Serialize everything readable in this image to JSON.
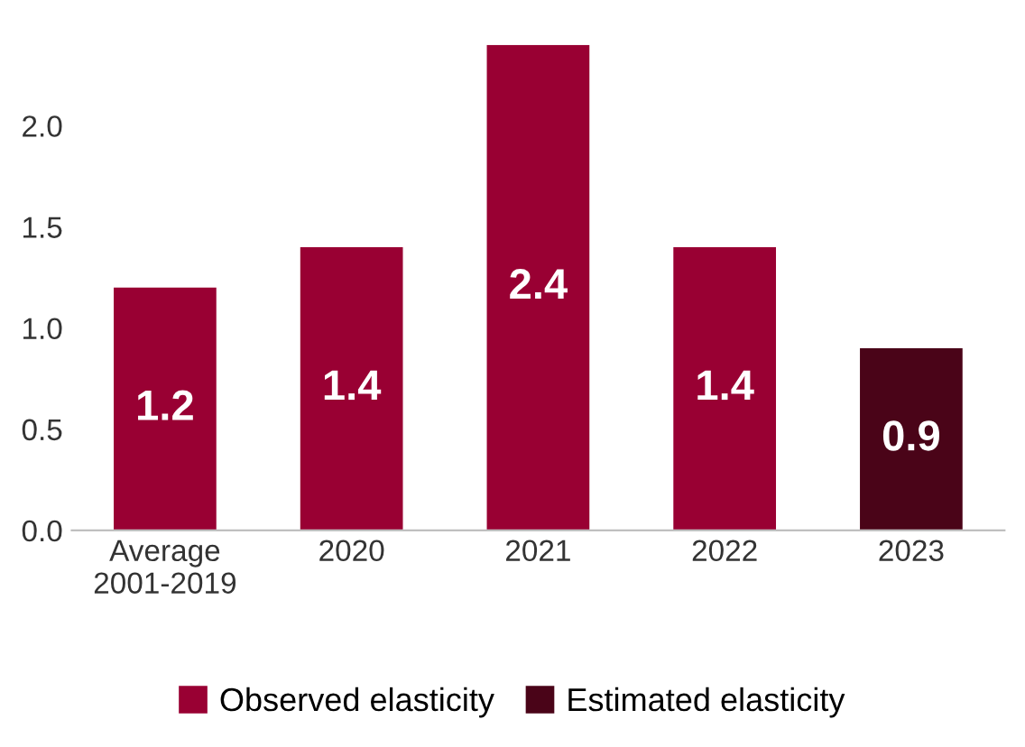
{
  "chart_data": {
    "type": "bar",
    "categories": [
      "Average\n2001-2019",
      "2020",
      "2021",
      "2022",
      "2023"
    ],
    "series": [
      {
        "name": "Observed elasticity",
        "color": "#990033",
        "values": [
          1.2,
          1.4,
          2.4,
          1.4,
          null
        ]
      },
      {
        "name": "Estimated elasticity",
        "color": "#4a0418",
        "values": [
          null,
          null,
          null,
          null,
          0.9
        ]
      }
    ],
    "ylim": [
      0,
      2.4
    ],
    "yticks": [
      {
        "value": 0,
        "label": "0.0"
      },
      {
        "value": 0.5,
        "label": "0.5"
      },
      {
        "value": 1.0,
        "label": "1.0"
      },
      {
        "value": 1.5,
        "label": "1.5"
      },
      {
        "value": 2.0,
        "label": "2.0"
      }
    ],
    "data_labels": true,
    "grid": false,
    "legend": "bottom"
  }
}
